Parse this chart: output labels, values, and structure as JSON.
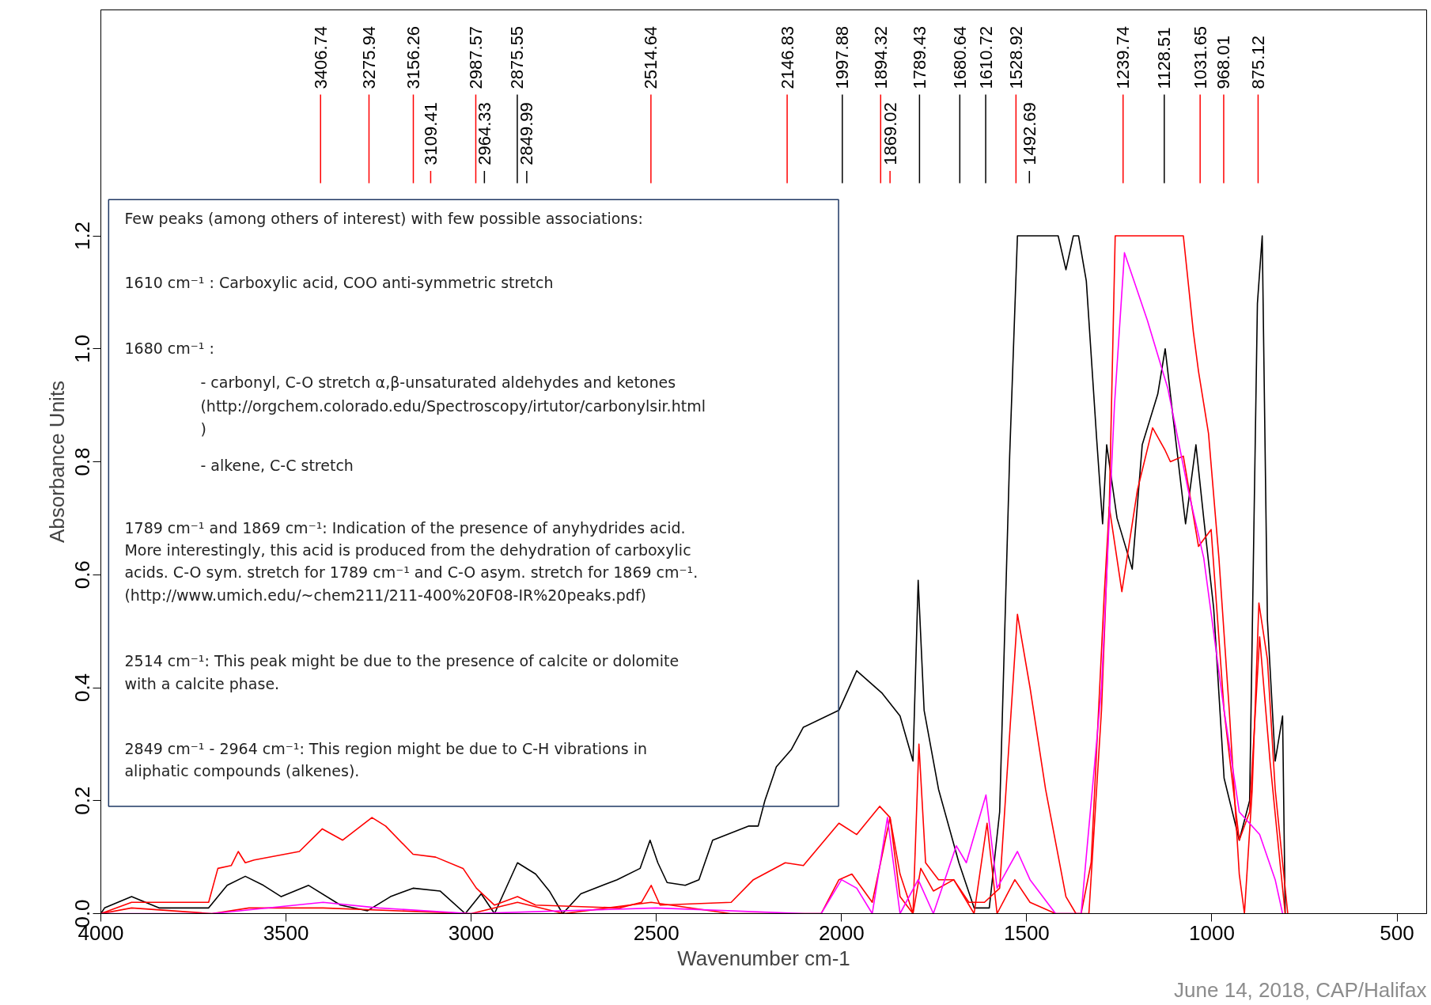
{
  "chart_data": {
    "type": "line",
    "xlabel": "Wavenumber cm-1",
    "ylabel": "Absorbance Units",
    "xlim": [
      4000,
      420
    ],
    "ylim": [
      0,
      1.6
    ],
    "xticks": [
      4000,
      3500,
      3000,
      2500,
      2000,
      1500,
      1000,
      500
    ],
    "yticks": [
      {
        "value": 0,
        "label": "0.0"
      },
      0.2,
      0.4,
      0.6,
      0.8,
      {
        "value": 1.0,
        "label": "1.0"
      },
      1.2
    ],
    "grid": false,
    "marker": "none",
    "line_style": "solid",
    "series": [
      {
        "color": "#000000",
        "x": [
          4000,
          3990,
          3917,
          3843,
          3709,
          3659,
          3610,
          3561,
          3513,
          3439,
          3353,
          3280,
          3218,
          3157,
          3084,
          3016,
          2973,
          2937,
          2875,
          2826,
          2789,
          2753,
          2704,
          2606,
          2544,
          2517,
          2496,
          2471,
          2422,
          2385,
          2348,
          2250,
          2225,
          2207,
          2176,
          2136,
          2103,
          2007,
          1959,
          1890,
          1842,
          1807,
          1793,
          1777,
          1738,
          1683,
          1642,
          1601,
          1573,
          1546,
          1525,
          1415,
          1394,
          1374,
          1360,
          1339,
          1311,
          1295,
          1284,
          1256,
          1215,
          1188,
          1146,
          1126,
          1105,
          1071,
          1043,
          1022,
          995,
          967,
          926,
          898,
          877,
          864,
          850,
          829,
          809,
          802
        ],
        "values": [
          0.0,
          0.01,
          0.03,
          0.01,
          0.01,
          0.05,
          0.066,
          0.05,
          0.03,
          0.05,
          0.015,
          0.005,
          0.03,
          0.045,
          0.04,
          0.0,
          0.035,
          0.0,
          0.09,
          0.07,
          0.04,
          0.0,
          0.035,
          0.06,
          0.08,
          0.13,
          0.09,
          0.055,
          0.05,
          0.06,
          0.13,
          0.155,
          0.155,
          0.2,
          0.26,
          0.29,
          0.33,
          0.36,
          0.43,
          0.39,
          0.35,
          0.27,
          0.59,
          0.36,
          0.22,
          0.09,
          0.01,
          0.01,
          0.18,
          0.81,
          1.2,
          1.2,
          1.14,
          1.2,
          1.2,
          1.12,
          0.84,
          0.69,
          0.83,
          0.7,
          0.61,
          0.83,
          0.92,
          1.0,
          0.88,
          0.69,
          0.83,
          0.7,
          0.54,
          0.24,
          0.13,
          0.2,
          1.08,
          1.2,
          0.52,
          0.27,
          0.35,
          0.0
        ]
      },
      {
        "color": "#ff0000",
        "x": [
          4000,
          3917,
          3709,
          3684,
          3648,
          3629,
          3610,
          3586,
          3464,
          3402,
          3347,
          3268,
          3231,
          3157,
          3096,
          3022,
          2986,
          2937,
          2875,
          2826,
          2600,
          2540,
          2514,
          2490,
          2298,
          2238,
          2152,
          2103,
          2007,
          1959,
          1897,
          1869,
          1842,
          1807,
          1791,
          1773,
          1738,
          1697,
          1656,
          1614,
          1573,
          1525,
          1491,
          1449,
          1394,
          1367,
          1332,
          1298,
          1277,
          1261,
          1077,
          1050,
          1036,
          1009,
          981,
          953,
          926,
          912,
          891,
          873,
          850,
          829,
          809,
          795
        ],
        "values": [
          0.0,
          0.02,
          0.02,
          0.08,
          0.085,
          0.11,
          0.09,
          0.095,
          0.11,
          0.15,
          0.13,
          0.17,
          0.155,
          0.105,
          0.1,
          0.08,
          0.045,
          0.015,
          0.03,
          0.015,
          0.01,
          0.02,
          0.05,
          0.015,
          0.02,
          0.06,
          0.09,
          0.085,
          0.16,
          0.14,
          0.19,
          0.17,
          0.07,
          0.0,
          0.3,
          0.09,
          0.06,
          0.06,
          0.02,
          0.02,
          0.045,
          0.53,
          0.4,
          0.22,
          0.03,
          0.0,
          0.0,
          0.36,
          0.72,
          1.2,
          1.2,
          1.03,
          0.96,
          0.85,
          0.63,
          0.36,
          0.07,
          0.0,
          0.22,
          0.55,
          0.45,
          0.22,
          0.09,
          0.0
        ]
      },
      {
        "color": "#ff0000",
        "x": [
          4000,
          3917,
          3700,
          3600,
          3400,
          3000,
          2875,
          2750,
          2514,
          2300,
          2055,
          2007,
          1972,
          1917,
          1869,
          1842,
          1807,
          1786,
          1752,
          1697,
          1642,
          1607,
          1580,
          1532,
          1491,
          1422,
          1353,
          1326,
          1291,
          1277,
          1243,
          1201,
          1160,
          1126,
          1112,
          1077,
          1036,
          1002,
          967,
          926,
          898,
          871,
          843,
          816,
          802
        ],
        "values": [
          0.0,
          0.01,
          0.0,
          0.01,
          0.01,
          0.0,
          0.02,
          0.0,
          0.02,
          0.0,
          0.0,
          0.06,
          0.07,
          0.02,
          0.17,
          0.03,
          0.0,
          0.08,
          0.04,
          0.06,
          0.0,
          0.16,
          0.0,
          0.06,
          0.02,
          0.0,
          0.0,
          0.09,
          0.56,
          0.72,
          0.57,
          0.75,
          0.86,
          0.82,
          0.8,
          0.81,
          0.65,
          0.68,
          0.36,
          0.13,
          0.18,
          0.49,
          0.27,
          0.09,
          0.0
        ]
      },
      {
        "color": "#ff00ff",
        "x": [
          4000,
          3700,
          3400,
          3250,
          3000,
          2500,
          2100,
          2055,
          2000,
          1959,
          1917,
          1876,
          1842,
          1793,
          1752,
          1690,
          1663,
          1610,
          1580,
          1525,
          1491,
          1422,
          1353,
          1298,
          1263,
          1236,
          1174,
          1119,
          1064,
          1022,
          967,
          926,
          871,
          829,
          809
        ],
        "values": [
          0.0,
          0.0,
          0.02,
          0.01,
          0.0,
          0.01,
          0.0,
          0.0,
          0.06,
          0.045,
          0.0,
          0.17,
          0.0,
          0.06,
          0.0,
          0.12,
          0.09,
          0.21,
          0.045,
          0.11,
          0.06,
          0.0,
          0.0,
          0.4,
          0.9,
          1.17,
          1.05,
          0.93,
          0.75,
          0.63,
          0.36,
          0.18,
          0.14,
          0.06,
          0.0
        ]
      }
    ],
    "ref_lines": [
      {
        "axis": "x",
        "value": 3406.74,
        "label": "3406.74",
        "color": "#ff0000"
      },
      {
        "axis": "x",
        "value": 3275.94,
        "label": "3275.94",
        "color": "#ff0000"
      },
      {
        "axis": "x",
        "value": 3156.26,
        "label": "3156.26",
        "color": "#ff0000"
      },
      {
        "axis": "x",
        "value": 3109.41,
        "label": "3109.41",
        "color": "#ff0000"
      },
      {
        "axis": "x",
        "value": 2987.57,
        "label": "2987.57",
        "color": "#ff0000"
      },
      {
        "axis": "x",
        "value": 2964.33,
        "label": "2964.33",
        "color": "#000000"
      },
      {
        "axis": "x",
        "value": 2875.55,
        "label": "2875.55",
        "color": "#000000"
      },
      {
        "axis": "x",
        "value": 2849.99,
        "label": "2849.99",
        "color": "#000000"
      },
      {
        "axis": "x",
        "value": 2514.64,
        "label": "2514.64",
        "color": "#ff0000"
      },
      {
        "axis": "x",
        "value": 2146.83,
        "label": "2146.83",
        "color": "#ff0000"
      },
      {
        "axis": "x",
        "value": 1997.88,
        "label": "1997.88",
        "color": "#000000"
      },
      {
        "axis": "x",
        "value": 1894.32,
        "label": "1894.32",
        "color": "#ff0000"
      },
      {
        "axis": "x",
        "value": 1869.02,
        "label": "1869.02",
        "color": "#ff0000"
      },
      {
        "axis": "x",
        "value": 1789.43,
        "label": "1789.43",
        "color": "#000000"
      },
      {
        "axis": "x",
        "value": 1680.64,
        "label": "1680.64",
        "color": "#000000"
      },
      {
        "axis": "x",
        "value": 1610.72,
        "label": "1610.72",
        "color": "#000000"
      },
      {
        "axis": "x",
        "value": 1528.92,
        "label": "1528.92",
        "color": "#ff0000"
      },
      {
        "axis": "x",
        "value": 1492.69,
        "label": "1492.69",
        "color": "#000000"
      },
      {
        "axis": "x",
        "value": 1239.74,
        "label": "1239.74",
        "color": "#ff0000"
      },
      {
        "axis": "x",
        "value": 1128.51,
        "label": "1128.51",
        "color": "#000000"
      },
      {
        "axis": "x",
        "value": 1031.65,
        "label": "1031.65",
        "color": "#ff0000"
      },
      {
        "axis": "x",
        "value": 968.01,
        "label": "968.01",
        "color": "#ff0000"
      },
      {
        "axis": "x",
        "value": 875.12,
        "label": "875.12",
        "color": "#ff0000"
      }
    ],
    "annotations": [
      "Few peaks (among others of interest) with few possible associations:",
      "1610 cm⁻¹ : Carboxylic acid, COO anti-symmetric stretch",
      "1680 cm⁻¹ :",
      "- carbonyl, C-O stretch α,β-unsaturated aldehydes and ketones",
      "(http://orgchem.colorado.edu/Spectroscopy/irtutor/carbonylsir.html",
      ")",
      "- alkene, C-C stretch",
      "1789 cm⁻¹ and 1869 cm⁻¹: Indication of the presence of anyhydrides acid.",
      "More interestingly, this acid is produced from the dehydration of carboxylic",
      "acids. C-O sym. stretch for 1789 cm⁻¹ and C-O asym. stretch for 1869 cm⁻¹.",
      "(http://www.umich.edu/~chem211/211-400%20F08-IR%20peaks.pdf)",
      "2514 cm⁻¹: This peak might be due to the presence of calcite or dolomite",
      "with a calcite phase.",
      "2849 cm⁻¹ - 2964 cm⁻¹: This region might be due to C-H vibrations in",
      "aliphatic compounds (alkenes).",
      "June 14, 2018, CAP/Halifax"
    ]
  }
}
